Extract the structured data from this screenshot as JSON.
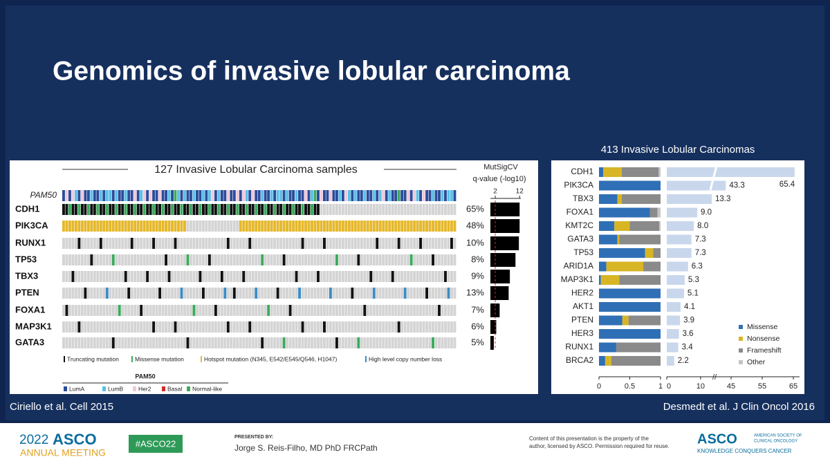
{
  "title": "Genomics of invasive lobular carcinoma",
  "oncoprint": {
    "heading": "127 Invasive Lobular Carcinoma samples",
    "mutsig_label": "MutSigCV",
    "qvalue_label": "q-value (-log10)",
    "qlim": [
      0,
      12.5
    ],
    "qticks": [
      2,
      12
    ],
    "pam50_label": "PAM50",
    "genes": [
      "CDH1",
      "PIK3CA",
      "RUNX1",
      "TP53",
      "TBX3",
      "PTEN",
      "FOXA1",
      "MAP3K1",
      "GATA3"
    ],
    "mutation_frequency": {
      "values": [
        65,
        48,
        10,
        8,
        9,
        13,
        7,
        6,
        5
      ],
      "value_labels": [
        "65%",
        "48%",
        "10%",
        "8%",
        "9%",
        "13%",
        "7%",
        "6%",
        "5%"
      ]
    },
    "qvalues": [
      12,
      12,
      11.7,
      10.3,
      8,
      7.5,
      3.8,
      2.4,
      1.4
    ],
    "legend": [
      {
        "name": "Truncating mutation",
        "color": "#111111"
      },
      {
        "name": "Missense mutation",
        "color": "#3aaa5c"
      },
      {
        "name": "Hotspot mutation (N345, E542/E545/Q546, H1047)",
        "color": "#e5b82c"
      },
      {
        "name": "High level copy number loss",
        "color": "#3b8bc4"
      }
    ],
    "pam50_legend": {
      "title": "PAM50",
      "items": [
        {
          "name": "LumA",
          "color": "#2b4c9a"
        },
        {
          "name": "LumB",
          "color": "#5bc0e8"
        },
        {
          "name": "Her2",
          "color": "#f0c8d8"
        },
        {
          "name": "Basal",
          "color": "#d62a2a"
        },
        {
          "name": "Normal-like",
          "color": "#3aaa5c"
        }
      ]
    }
  },
  "right": {
    "heading": "413 Invasive Lobular Carcinomas",
    "genes": [
      "CDH1",
      "PIK3CA",
      "TBX3",
      "FOXA1",
      "KMT2C",
      "GATA3",
      "TP53",
      "ARID1A",
      "MAP3K1",
      "HER2",
      "AKT1",
      "PTEN",
      "HER3",
      "RUNX1",
      "BRCA2"
    ],
    "series": [
      {
        "name": "Missense",
        "color": "#2f6fb5",
        "values": [
          0.07,
          1,
          0.3,
          0.83,
          0.25,
          0.3,
          0.75,
          0.12,
          0.03,
          1,
          1,
          0.38,
          1,
          0.28,
          0.1
        ]
      },
      {
        "name": "Nonsense",
        "color": "#d8b524",
        "values": [
          0.3,
          0,
          0.07,
          0,
          0.25,
          0.03,
          0.13,
          0.6,
          0.3,
          0,
          0,
          0.1,
          0,
          0,
          0.1
        ]
      },
      {
        "name": "Frameshift",
        "color": "#8a8a8a",
        "values": [
          0.6,
          0,
          0.63,
          0.12,
          0.48,
          0.67,
          0.12,
          0.28,
          0.67,
          0,
          0,
          0.52,
          0,
          0.72,
          0.8
        ]
      },
      {
        "name": "Other",
        "color": "#c4c4c4",
        "values": [
          0.03,
          0,
          0,
          0.05,
          0.02,
          0,
          0,
          0,
          0,
          0,
          0,
          0,
          0,
          0,
          0
        ]
      }
    ],
    "proportion_xlim": [
      0,
      1
    ],
    "proportion_xticks": [
      0,
      0.5,
      1
    ],
    "frequency": {
      "color": "#c9d7ec",
      "values": [
        65.4,
        43.3,
        13.3,
        9,
        8,
        7.3,
        7.3,
        6.3,
        5.3,
        5.1,
        4.1,
        3.9,
        3.6,
        3.4,
        2.2
      ],
      "value_labels": [
        "65.4",
        "43.3",
        "13.3",
        "9.0",
        "8.0",
        "7.3",
        "7.3",
        "6.3",
        "5.3",
        "5.1",
        "4.1",
        "3.9",
        "3.6",
        "3.4",
        "2.2"
      ]
    },
    "frequency_xlim": [
      [
        0,
        13.5
      ],
      [
        39,
        67
      ]
    ],
    "frequency_xticks": [
      0,
      10,
      45,
      55,
      65
    ]
  },
  "citations": [
    "Ciriello et al. Cell 2015",
    "Desmedt et al. J Clin Oncol 2016"
  ],
  "footer": {
    "year": "2022",
    "brand": "ASCO",
    "meeting": "ANNUAL MEETING",
    "hashtag": "#ASCO22",
    "presented_by": "PRESENTED BY:",
    "presenter": "Jorge S. Reis-Filho, MD PhD FRCPath",
    "notice": [
      "Content of this presentation is the property of the",
      "author, licensed by ASCO. Permission required for reuse."
    ],
    "society": [
      "AMERICAN SOCIETY OF",
      "CLINICAL ONCOLOGY"
    ],
    "tagline": "KNOWLEDGE CONQUERS CANCER"
  }
}
